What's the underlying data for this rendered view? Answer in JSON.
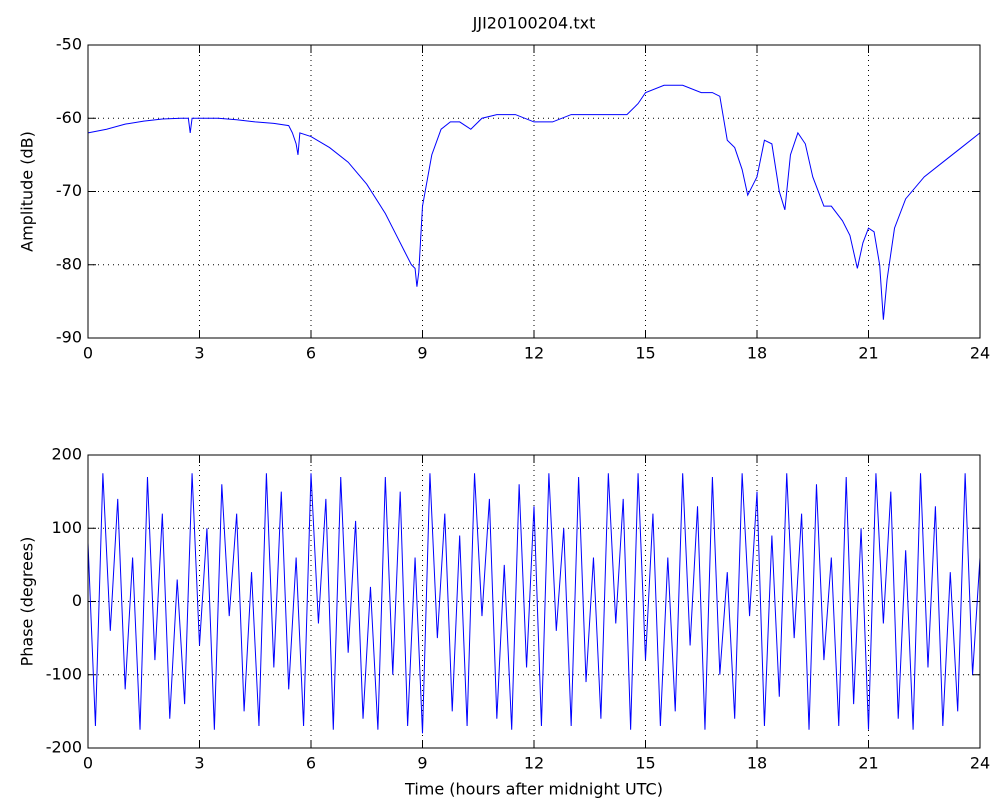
{
  "chart_data": [
    {
      "type": "line",
      "title": "JJI20100204.txt",
      "ylabel": "Amplitude (dB)",
      "xlim": [
        0,
        24
      ],
      "xticks": [
        0,
        3,
        6,
        9,
        12,
        15,
        18,
        21,
        24
      ],
      "ylim": [
        -90,
        -50
      ],
      "yticks": [
        -90,
        -80,
        -70,
        -60,
        -50
      ],
      "grid": true,
      "series": [
        {
          "name": "Amplitude",
          "color": "#0000ff",
          "x": [
            0,
            0.5,
            1,
            1.5,
            2,
            2.5,
            2.7,
            2.75,
            2.8,
            3,
            3.5,
            4,
            4.5,
            5,
            5.4,
            5.5,
            5.6,
            5.65,
            5.7,
            6,
            6.5,
            7,
            7.5,
            8,
            8.3,
            8.5,
            8.7,
            8.8,
            8.85,
            8.9,
            9,
            9.25,
            9.5,
            9.75,
            10,
            10.3,
            10.6,
            11,
            11.5,
            12,
            12.5,
            13,
            13.5,
            14,
            14.5,
            14.8,
            15,
            15.5,
            16,
            16.5,
            16.8,
            17,
            17.2,
            17.4,
            17.6,
            17.75,
            17.9,
            18,
            18.2,
            18.4,
            18.6,
            18.75,
            18.9,
            19.1,
            19.3,
            19.5,
            19.8,
            20,
            20.3,
            20.5,
            20.7,
            20.85,
            21,
            21.15,
            21.3,
            21.4,
            21.5,
            21.7,
            22,
            22.5,
            23,
            23.5,
            24
          ],
          "values": [
            -62,
            -61.5,
            -60.8,
            -60.4,
            -60.1,
            -60,
            -60,
            -62,
            -60,
            -60,
            -60,
            -60.2,
            -60.5,
            -60.7,
            -61,
            -62,
            -63.5,
            -65,
            -62,
            -62.5,
            -64,
            -66,
            -69,
            -73,
            -76,
            -78,
            -80,
            -80.5,
            -83,
            -81,
            -72,
            -65,
            -61.5,
            -60.5,
            -60.5,
            -61.5,
            -60,
            -59.5,
            -59.5,
            -60.5,
            -60.5,
            -59.5,
            -59.5,
            -59.5,
            -59.5,
            -58,
            -56.5,
            -55.5,
            -55.5,
            -56.5,
            -56.5,
            -57,
            -63,
            -64,
            -67,
            -70.5,
            -69,
            -68,
            -63,
            -63.5,
            -70,
            -72.5,
            -65,
            -62,
            -63.5,
            -68,
            -72,
            -72,
            -74,
            -76,
            -80.5,
            -77,
            -75,
            -75.5,
            -80,
            -87.5,
            -82,
            -75,
            -71,
            -68,
            -66,
            -64,
            -62
          ]
        }
      ]
    },
    {
      "type": "line",
      "ylabel": "Phase (degrees)",
      "xlabel": "Time (hours after midnight UTC)",
      "xlim": [
        0,
        24
      ],
      "xticks": [
        0,
        3,
        6,
        9,
        12,
        15,
        18,
        21,
        24
      ],
      "ylim": [
        -200,
        200
      ],
      "yticks": [
        -200,
        -100,
        0,
        100,
        200
      ],
      "grid": true,
      "series": [
        {
          "name": "Phase",
          "color": "#0000ff",
          "x": [
            0,
            0.2,
            0.4,
            0.6,
            0.8,
            1,
            1.2,
            1.4,
            1.6,
            1.8,
            2,
            2.2,
            2.4,
            2.6,
            2.8,
            3,
            3.2,
            3.4,
            3.6,
            3.8,
            4,
            4.2,
            4.4,
            4.6,
            4.8,
            5,
            5.2,
            5.4,
            5.6,
            5.8,
            6,
            6.2,
            6.4,
            6.6,
            6.8,
            7,
            7.2,
            7.4,
            7.6,
            7.8,
            8,
            8.2,
            8.4,
            8.6,
            8.8,
            9,
            9.2,
            9.4,
            9.6,
            9.8,
            10,
            10.2,
            10.4,
            10.6,
            10.8,
            11,
            11.2,
            11.4,
            11.6,
            11.8,
            12,
            12.2,
            12.4,
            12.6,
            12.8,
            13,
            13.2,
            13.4,
            13.6,
            13.8,
            14,
            14.2,
            14.4,
            14.6,
            14.8,
            15,
            15.2,
            15.4,
            15.6,
            15.8,
            16,
            16.2,
            16.4,
            16.6,
            16.8,
            17,
            17.2,
            17.4,
            17.6,
            17.8,
            18,
            18.2,
            18.4,
            18.6,
            18.8,
            19,
            19.2,
            19.4,
            19.6,
            19.8,
            20,
            20.2,
            20.4,
            20.6,
            20.8,
            21,
            21.2,
            21.4,
            21.6,
            21.8,
            22,
            22.2,
            22.4,
            22.6,
            22.8,
            23,
            23.2,
            23.4,
            23.6,
            23.8,
            24
          ],
          "values": [
            80,
            -170,
            175,
            -40,
            140,
            -120,
            60,
            -175,
            170,
            -80,
            120,
            -160,
            30,
            -140,
            175,
            -60,
            100,
            -175,
            160,
            -20,
            120,
            -150,
            40,
            -170,
            175,
            -90,
            150,
            -120,
            60,
            -170,
            175,
            -30,
            140,
            -175,
            170,
            -70,
            110,
            -160,
            20,
            -175,
            170,
            -100,
            150,
            -170,
            60,
            -180,
            175,
            -50,
            120,
            -150,
            90,
            -170,
            175,
            -20,
            140,
            -160,
            50,
            -175,
            160,
            -90,
            130,
            -170,
            175,
            -40,
            100,
            -170,
            170,
            -110,
            60,
            -160,
            175,
            -30,
            140,
            -175,
            175,
            -80,
            120,
            -170,
            60,
            -150,
            175,
            -60,
            130,
            -175,
            170,
            -100,
            40,
            -160,
            175,
            -20,
            150,
            -170,
            90,
            -130,
            175,
            -50,
            120,
            -175,
            160,
            -80,
            60,
            -170,
            170,
            -140,
            100,
            -175,
            175,
            -30,
            150,
            -160,
            70,
            -175,
            175,
            -90,
            130,
            -170,
            40,
            -150,
            175,
            -100,
            60
          ]
        }
      ]
    }
  ]
}
